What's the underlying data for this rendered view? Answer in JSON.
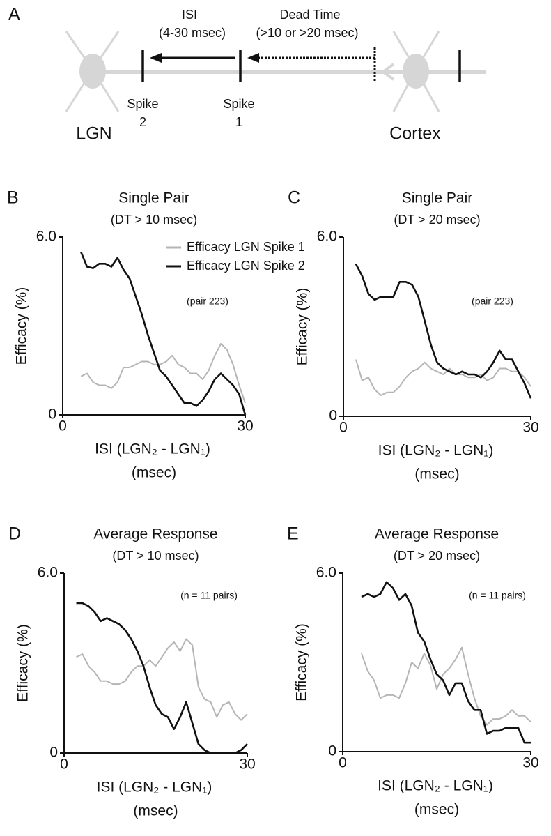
{
  "diagram": {
    "panel": "A",
    "isi": "ISI",
    "isi_range": "(4-30 msec)",
    "dead_time": "Dead Time",
    "dead_time_range": "(>10 or >20 msec)",
    "spike2": [
      "Spike",
      "2"
    ],
    "spike1": [
      "Spike",
      "1"
    ],
    "lgn": "LGN",
    "cortex": "Cortex"
  },
  "chart_data": [
    {
      "type": "line",
      "panel": "B",
      "title": "Single Pair",
      "subtitle": "(DT > 10 msec)",
      "annotation": "(pair 223)",
      "ylabel": "Efficacy (%)",
      "xlabel": [
        "ISI (LGN₂ - LGN₁)",
        "(msec)"
      ],
      "xlim": [
        0,
        30
      ],
      "xticks": [
        0,
        30
      ],
      "ylim": [
        0,
        6
      ],
      "yticks": [
        0,
        {
          "value": 6,
          "label": "6.0"
        }
      ],
      "x": [
        3,
        4,
        5,
        6,
        7,
        8,
        9,
        10,
        11,
        12,
        13,
        14,
        15,
        16,
        17,
        18,
        19,
        20,
        21,
        22,
        23,
        24,
        25,
        26,
        27,
        28,
        29,
        30
      ],
      "series": [
        {
          "name": "Efficacy LGN Spike 1",
          "color": "#b5b5b5",
          "values": [
            1.3,
            1.4,
            1.1,
            1.0,
            1.0,
            0.9,
            1.1,
            1.6,
            1.6,
            1.7,
            1.8,
            1.8,
            1.7,
            1.7,
            1.8,
            2.0,
            1.7,
            1.6,
            1.4,
            1.4,
            1.2,
            1.5,
            2.0,
            2.4,
            2.2,
            1.7,
            1.0,
            0.4
          ]
        },
        {
          "name": "Efficacy LGN Spike 2",
          "color": "#111111",
          "values": [
            5.5,
            5.0,
            4.95,
            5.1,
            5.1,
            5.0,
            5.3,
            4.9,
            4.6,
            4.0,
            3.4,
            2.7,
            2.1,
            1.5,
            1.3,
            1.0,
            0.7,
            0.4,
            0.4,
            0.3,
            0.5,
            0.8,
            1.2,
            1.4,
            1.2,
            1.0,
            0.7,
            0.0
          ]
        }
      ]
    },
    {
      "type": "line",
      "panel": "C",
      "title": "Single Pair",
      "subtitle": "(DT > 20 msec)",
      "annotation": "(pair 223)",
      "ylabel": "Efficacy (%)",
      "xlabel": [
        "ISI (LGN₂ - LGN₁)",
        "(msec)"
      ],
      "xlim": [
        0,
        30
      ],
      "xticks": [
        0,
        30
      ],
      "ylim": [
        0,
        6
      ],
      "yticks": [
        0,
        {
          "value": 6,
          "label": "6.0"
        }
      ],
      "x": [
        2,
        3,
        4,
        5,
        6,
        7,
        8,
        9,
        10,
        11,
        12,
        13,
        14,
        15,
        16,
        17,
        18,
        19,
        20,
        21,
        22,
        23,
        24,
        25,
        26,
        27,
        28,
        29,
        30
      ],
      "series": [
        {
          "color": "#b5b5b5",
          "values": [
            1.9,
            1.2,
            1.3,
            0.9,
            0.7,
            0.8,
            0.8,
            1.0,
            1.3,
            1.5,
            1.6,
            1.8,
            1.6,
            1.5,
            1.4,
            1.6,
            1.4,
            1.4,
            1.3,
            1.3,
            1.4,
            1.2,
            1.3,
            1.6,
            1.6,
            1.5,
            1.5,
            1.3,
            1.0
          ]
        },
        {
          "color": "#111111",
          "values": [
            5.1,
            4.7,
            4.1,
            3.9,
            4.0,
            4.0,
            4.0,
            4.5,
            4.5,
            4.4,
            4.0,
            3.2,
            2.4,
            1.8,
            1.6,
            1.5,
            1.4,
            1.5,
            1.4,
            1.4,
            1.3,
            1.5,
            1.8,
            2.2,
            1.9,
            1.9,
            1.5,
            1.1,
            0.6
          ]
        }
      ]
    },
    {
      "type": "line",
      "panel": "D",
      "title": "Average Response",
      "subtitle": "(DT > 10 msec)",
      "annotation": "(n = 11 pairs)",
      "ylabel": "Efficacy (%)",
      "xlabel": [
        "ISI (LGN₂ - LGN₁)",
        "(msec)"
      ],
      "xlim": [
        0,
        30
      ],
      "xticks": [
        0,
        30
      ],
      "ylim": [
        0,
        6
      ],
      "yticks": [
        0,
        {
          "value": 6,
          "label": "6.0"
        }
      ],
      "x": [
        2,
        3,
        4,
        5,
        6,
        7,
        8,
        9,
        10,
        11,
        12,
        13,
        14,
        15,
        16,
        17,
        18,
        19,
        20,
        21,
        22,
        23,
        24,
        25,
        26,
        27,
        28,
        29,
        30
      ],
      "series": [
        {
          "color": "#b5b5b5",
          "values": [
            3.2,
            3.3,
            2.9,
            2.7,
            2.4,
            2.4,
            2.3,
            2.3,
            2.4,
            2.7,
            2.9,
            2.9,
            3.1,
            2.9,
            3.2,
            3.5,
            3.7,
            3.4,
            3.8,
            3.6,
            2.2,
            1.8,
            1.7,
            1.2,
            1.6,
            1.7,
            1.3,
            1.1,
            1.3
          ]
        },
        {
          "color": "#111111",
          "values": [
            5.0,
            5.0,
            4.9,
            4.7,
            4.4,
            4.5,
            4.4,
            4.3,
            4.1,
            3.8,
            3.4,
            2.9,
            2.2,
            1.6,
            1.3,
            1.2,
            0.8,
            1.2,
            1.7,
            1.0,
            0.3,
            0.1,
            0.0,
            0.0,
            0.0,
            0.0,
            0.0,
            0.1,
            0.3
          ]
        }
      ]
    },
    {
      "type": "line",
      "panel": "E",
      "title": "Average Response",
      "subtitle": "(DT > 20 msec)",
      "annotation": "(n = 11 pairs)",
      "ylabel": "Efficacy (%)",
      "xlabel": [
        "ISI (LGN₂ - LGN₁)",
        "(msec)"
      ],
      "xlim": [
        0,
        30
      ],
      "xticks": [
        0,
        30
      ],
      "ylim": [
        0,
        6
      ],
      "yticks": [
        0,
        {
          "value": 6,
          "label": "6.0"
        }
      ],
      "x": [
        3,
        4,
        5,
        6,
        7,
        8,
        9,
        10,
        11,
        12,
        13,
        14,
        15,
        16,
        17,
        18,
        19,
        20,
        21,
        22,
        23,
        24,
        25,
        26,
        27,
        28,
        29,
        30
      ],
      "series": [
        {
          "color": "#b5b5b5",
          "values": [
            3.3,
            2.7,
            2.4,
            1.8,
            1.9,
            1.9,
            1.8,
            2.3,
            3.0,
            2.8,
            3.3,
            2.9,
            2.1,
            2.6,
            2.8,
            3.1,
            3.5,
            2.6,
            1.8,
            1.2,
            0.9,
            1.1,
            1.1,
            1.2,
            1.4,
            1.2,
            1.2,
            1.0
          ]
        },
        {
          "color": "#111111",
          "values": [
            5.2,
            5.3,
            5.2,
            5.3,
            5.7,
            5.5,
            5.1,
            5.3,
            4.9,
            4.0,
            3.7,
            3.1,
            2.6,
            2.4,
            1.9,
            2.3,
            2.3,
            1.7,
            1.4,
            1.4,
            0.6,
            0.7,
            0.7,
            0.8,
            0.8,
            0.8,
            0.3,
            0.3
          ]
        }
      ]
    }
  ]
}
